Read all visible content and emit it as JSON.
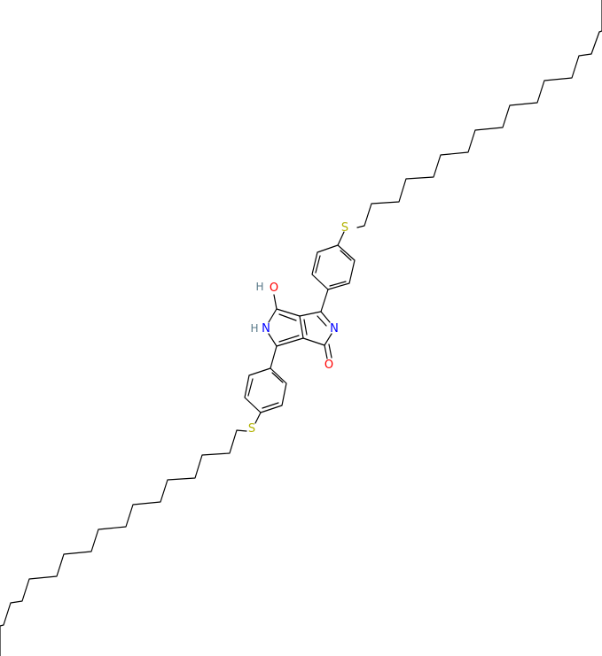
{
  "molecule": {
    "atoms": {
      "s_top": {
        "symbol": "S",
        "color": "#b2b200"
      },
      "s_bottom": {
        "symbol": "S",
        "color": "#b2b200"
      },
      "n_imine": {
        "symbol": "N",
        "color": "#0000ff"
      },
      "n_amine": {
        "symbol": "N",
        "color": "#0000ff"
      },
      "n_amine_h": {
        "symbol": "H",
        "color": "#5a7a8a"
      },
      "o_hydroxyl": {
        "symbol": "O",
        "color": "#ff0000"
      },
      "o_hydroxyl_h": {
        "symbol": "H",
        "color": "#5a7a8a"
      },
      "o_carbonyl": {
        "symbol": "O",
        "color": "#ff0000"
      }
    },
    "bond_color": "#000000"
  }
}
